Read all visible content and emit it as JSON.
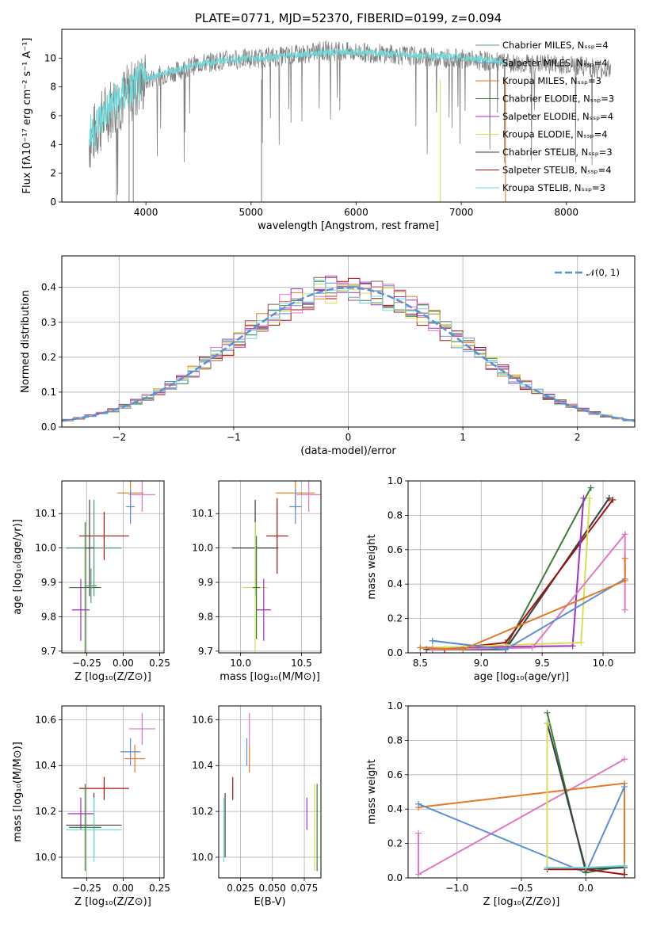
{
  "chart_data": [
    {
      "id": "spectrum",
      "type": "line",
      "title": "PLATE=0771, MJD=52370, FIBERID=0199, z=0.094",
      "xlabel": "wavelength [Angstrom, rest frame]",
      "ylabel": "Flux [fλ10⁻¹⁷ erg cm⁻² s⁻¹ A⁻¹]",
      "xlim": [
        3200,
        8650
      ],
      "ylim": [
        0,
        12
      ],
      "xticks": [
        4000,
        5000,
        6000,
        7000,
        8000
      ],
      "yticks": [
        0,
        2,
        4,
        6,
        8,
        10
      ],
      "legend_position": "upper-right",
      "legend": [
        {
          "label": "Chabrier MILES, Nₛₛₚ=4",
          "color": "#5a9a7a"
        },
        {
          "label": "Salpeter MILES, Nₛₛₚ=4",
          "color": "#7a9acc"
        },
        {
          "label": "Kroupa MILES, Nₛₛₚ=3",
          "color": "#e07b27"
        },
        {
          "label": "Chabrier ELODIE, Nₛₛₚ=3",
          "color": "#3a7a3a"
        },
        {
          "label": "Salpeter ELODIE, Nₛₛₚ=4",
          "color": "#a030c0"
        },
        {
          "label": "Kroupa ELODIE, Nₛₛₚ=4",
          "color": "#d8e050"
        },
        {
          "label": "Chabrier STELIB, Nₛₛₚ=3",
          "color": "#404040"
        },
        {
          "label": "Salpeter STELIB, Nₛₛₚ=4",
          "color": "#a01010"
        },
        {
          "label": "Kroupa STELIB, Nₛₛₚ=3",
          "color": "#70d8d8"
        }
      ],
      "series": [
        {
          "name": "observed",
          "color": "#808080",
          "x_start": 3460,
          "x_end": 8420,
          "points": [
            [
              3460,
              4.1
            ],
            [
              3550,
              5.3
            ],
            [
              3650,
              6.5
            ],
            [
              3750,
              7.0
            ],
            [
              3850,
              7.6
            ],
            [
              3950,
              8.2
            ],
            [
              4050,
              8.6
            ],
            [
              4150,
              8.8
            ],
            [
              4300,
              9.1
            ],
            [
              4500,
              9.6
            ],
            [
              4800,
              9.9
            ],
            [
              5100,
              10.0
            ],
            [
              5400,
              10.2
            ],
            [
              5700,
              10.5
            ],
            [
              6000,
              10.4
            ],
            [
              6300,
              10.3
            ],
            [
              6600,
              10.1
            ],
            [
              6900,
              10.0
            ],
            [
              7200,
              9.8
            ],
            [
              7500,
              9.6
            ],
            [
              7800,
              9.6
            ],
            [
              8100,
              9.5
            ],
            [
              8420,
              9.2
            ]
          ]
        },
        {
          "name": "model",
          "color": "#70d8d8",
          "x_start": 3460,
          "x_end": 7420,
          "points": [
            [
              3460,
              4.6
            ],
            [
              3550,
              5.6
            ],
            [
              3650,
              6.6
            ],
            [
              3750,
              7.2
            ],
            [
              3850,
              7.7
            ],
            [
              3950,
              8.3
            ],
            [
              4050,
              8.7
            ],
            [
              4150,
              8.9
            ],
            [
              4300,
              9.2
            ],
            [
              4500,
              9.6
            ],
            [
              4800,
              9.9
            ],
            [
              5100,
              10.0
            ],
            [
              5400,
              10.2
            ],
            [
              5700,
              10.4
            ],
            [
              6000,
              10.4
            ],
            [
              6300,
              10.3
            ],
            [
              6600,
              10.2
            ],
            [
              6900,
              10.1
            ],
            [
              7200,
              9.9
            ],
            [
              7420,
              9.7
            ]
          ]
        }
      ]
    },
    {
      "id": "residuals",
      "type": "line",
      "title": "",
      "xlabel": "(data-model)/error",
      "ylabel": "Normed distribution",
      "xlim": [
        -2.5,
        2.5
      ],
      "ylim": [
        0,
        0.49
      ],
      "xticks": [
        -2,
        -1,
        0,
        1,
        2
      ],
      "yticks": [
        0.0,
        0.1,
        0.2,
        0.3,
        0.4
      ],
      "grid": true,
      "legend_position": "upper-right",
      "legend": [
        {
          "label": "𝒩(0, 1)",
          "color": "#5b8fd6"
        }
      ],
      "histogram_colors": [
        "#5b8fd6",
        "#e07b27",
        "#3a7a3a",
        "#a01010",
        "#a030c0",
        "#d8e050",
        "#8c564b",
        "#e377c2",
        "#70d8d8"
      ]
    },
    {
      "id": "age-vs-Z",
      "type": "scatter",
      "xlabel": "Z [log₁₀(Z/Z⊙)]",
      "ylabel": "age  [log₁₀(age/yr)]",
      "xlim": [
        -0.42,
        0.28
      ],
      "ylim": [
        9.695,
        10.195
      ],
      "xticks": [
        -0.25,
        0.0,
        0.25
      ],
      "yticks": [
        9.7,
        9.8,
        9.9,
        10.0,
        10.1
      ],
      "grid": true,
      "points": [
        {
          "x": 0.05,
          "y": 10.16,
          "xerr": 0.09,
          "yerr": 0.05,
          "color": "#e07b27"
        },
        {
          "x": 0.13,
          "y": 10.155,
          "xerr": 0.09,
          "yerr": 0.05,
          "color": "#e377c2"
        },
        {
          "x": 0.05,
          "y": 10.12,
          "xerr": 0.03,
          "yerr": 0.05,
          "color": "#5b8fd6"
        },
        {
          "x": -0.13,
          "y": 10.035,
          "xerr": 0.17,
          "yerr": 0.07,
          "color": "#a01010"
        },
        {
          "x": -0.2,
          "y": 10.0,
          "xerr": 0.19,
          "yerr": 0.14,
          "color": "#70d8d8"
        },
        {
          "x": -0.2,
          "y": 10.0,
          "xerr": 0.19,
          "yerr": 0.14,
          "color": "#5a9a7a"
        },
        {
          "x": -0.23,
          "y": 10.0,
          "xerr": 0.03,
          "yerr": 0.14,
          "color": "#404040"
        },
        {
          "x": -0.26,
          "y": 9.885,
          "xerr": 0.11,
          "yerr": 0.19,
          "color": "#d8e050"
        },
        {
          "x": -0.26,
          "y": 9.885,
          "xerr": 0.11,
          "yerr": 0.19,
          "color": "#3a7a3a"
        },
        {
          "x": -0.22,
          "y": 9.89,
          "xerr": 0.04,
          "yerr": 0.05,
          "color": "#5a9a7a"
        },
        {
          "x": -0.29,
          "y": 9.82,
          "xerr": 0.06,
          "yerr": 0.09,
          "color": "#a030c0"
        }
      ]
    },
    {
      "id": "age-vs-mass",
      "type": "scatter",
      "xlabel": "mass [log₁₀(M/M⊙)]",
      "ylabel": "",
      "xlim": [
        9.82,
        10.66
      ],
      "ylim": [
        9.695,
        10.195
      ],
      "xticks": [
        10.0,
        10.5
      ],
      "yticks": [
        9.7,
        9.8,
        9.9,
        10.0,
        10.1
      ],
      "grid": true,
      "points": [
        {
          "x": 10.45,
          "y": 10.16,
          "xerr": 0.16,
          "yerr": 0.05,
          "color": "#e07b27"
        },
        {
          "x": 10.56,
          "y": 10.155,
          "xerr": 0.1,
          "yerr": 0.05,
          "color": "#e377c2"
        },
        {
          "x": 10.45,
          "y": 10.12,
          "xerr": 0.05,
          "yerr": 0.05,
          "color": "#5b8fd6"
        },
        {
          "x": 10.3,
          "y": 10.035,
          "xerr": 0.09,
          "yerr": 0.11,
          "color": "#a01010"
        },
        {
          "x": 10.12,
          "y": 10.0,
          "xerr": 0.19,
          "yerr": 0.14,
          "color": "#70d8d8"
        },
        {
          "x": 10.12,
          "y": 10.0,
          "xerr": 0.19,
          "yerr": 0.14,
          "color": "#404040"
        },
        {
          "x": 10.12,
          "y": 9.885,
          "xerr": 0.1,
          "yerr": 0.19,
          "color": "#d8e050"
        },
        {
          "x": 10.13,
          "y": 9.885,
          "xerr": 0.03,
          "yerr": 0.15,
          "color": "#3a7a3a"
        },
        {
          "x": 10.19,
          "y": 9.82,
          "xerr": 0.06,
          "yerr": 0.09,
          "color": "#a030c0"
        }
      ]
    },
    {
      "id": "weight-vs-age",
      "type": "line",
      "xlabel": "age  [log₁₀(age/yr)]",
      "ylabel": "mass weight",
      "xlim": [
        8.4,
        10.26
      ],
      "ylim": [
        0,
        1
      ],
      "xticks": [
        8.5,
        9.0,
        9.5,
        10.0
      ],
      "yticks": [
        0.0,
        0.2,
        0.4,
        0.6,
        0.8,
        1.0
      ],
      "grid": true,
      "series": [
        {
          "color": "#3a7a3a",
          "points": [
            [
              8.5,
              0.03
            ],
            [
              9.2,
              0.03
            ],
            [
              9.9,
              0.96
            ]
          ]
        },
        {
          "color": "#5a9a7a",
          "points": [
            [
              8.6,
              0.07
            ],
            [
              9.2,
              0.02
            ],
            [
              10.05,
              0.9
            ]
          ]
        },
        {
          "color": "#404040",
          "points": [
            [
              8.55,
              0.02
            ],
            [
              9.2,
              0.02
            ],
            [
              10.05,
              0.9
            ]
          ]
        },
        {
          "color": "#a01010",
          "points": [
            [
              8.6,
              0.02
            ],
            [
              8.7,
              0.02
            ],
            [
              9.2,
              0.06
            ],
            [
              10.08,
              0.89
            ]
          ]
        },
        {
          "color": "#a030c0",
          "points": [
            [
              8.6,
              0.03
            ],
            [
              9.75,
              0.04
            ],
            [
              9.84,
              0.9
            ]
          ]
        },
        {
          "color": "#d8e050",
          "points": [
            [
              8.6,
              0.03
            ],
            [
              9.82,
              0.06
            ],
            [
              9.89,
              0.9
            ]
          ]
        },
        {
          "color": "#e377c2",
          "points": [
            [
              8.6,
              0.02
            ],
            [
              9.42,
              0.03
            ],
            [
              10.18,
              0.69
            ],
            [
              10.18,
              0.25
            ]
          ]
        },
        {
          "color": "#5b8fd6",
          "points": [
            [
              8.6,
              0.07
            ],
            [
              9.2,
              0.02
            ],
            [
              10.18,
              0.43
            ]
          ]
        },
        {
          "color": "#e07b27",
          "points": [
            [
              8.5,
              0.03
            ],
            [
              8.85,
              0.02
            ],
            [
              10.18,
              0.42
            ],
            [
              10.18,
              0.55
            ]
          ]
        }
      ]
    },
    {
      "id": "mass-vs-Z",
      "type": "scatter",
      "xlabel": "Z [log₁₀(Z/Z⊙)]",
      "ylabel": "mass [log₁₀(M/M⊙)]",
      "xlim": [
        -0.42,
        0.28
      ],
      "ylim": [
        9.91,
        10.66
      ],
      "xticks": [
        -0.25,
        0.0,
        0.25
      ],
      "yticks": [
        10.0,
        10.2,
        10.4,
        10.6
      ],
      "grid": true,
      "points": [
        {
          "x": 0.13,
          "y": 10.56,
          "xerr": 0.09,
          "yerr": 0.07,
          "color": "#e377c2"
        },
        {
          "x": 0.05,
          "y": 10.46,
          "xerr": 0.07,
          "yerr": 0.06,
          "color": "#5b8fd6"
        },
        {
          "x": 0.08,
          "y": 10.43,
          "xerr": 0.07,
          "yerr": 0.06,
          "color": "#e07b27"
        },
        {
          "x": -0.13,
          "y": 10.3,
          "xerr": 0.17,
          "yerr": 0.05,
          "color": "#a01010"
        },
        {
          "x": -0.29,
          "y": 10.19,
          "xerr": 0.09,
          "yerr": 0.07,
          "color": "#a030c0"
        },
        {
          "x": -0.2,
          "y": 10.14,
          "xerr": 0.19,
          "yerr": 0.14,
          "color": "#404040"
        },
        {
          "x": -0.2,
          "y": 10.12,
          "xerr": 0.19,
          "yerr": 0.14,
          "color": "#70d8d8"
        },
        {
          "x": -0.26,
          "y": 10.13,
          "xerr": 0.11,
          "yerr": 0.19,
          "color": "#d8e050"
        },
        {
          "x": -0.26,
          "y": 10.13,
          "xerr": 0.11,
          "yerr": 0.19,
          "color": "#3a7a3a"
        }
      ]
    },
    {
      "id": "mass-vs-EBV",
      "type": "scatter",
      "xlabel": "E(B-V)",
      "ylabel": "",
      "xlim": [
        0.008,
        0.088
      ],
      "ylim": [
        9.91,
        10.66
      ],
      "xticks": [
        0.025,
        0.05,
        0.075
      ],
      "xticklabels": [
        "0.025",
        "0.050",
        "0.075"
      ],
      "yticks": [
        10.0,
        10.2,
        10.4,
        10.6
      ],
      "grid": true,
      "points": [
        {
          "x": 0.032,
          "y": 10.56,
          "yerr": 0.07,
          "color": "#e377c2"
        },
        {
          "x": 0.03,
          "y": 10.46,
          "yerr": 0.06,
          "color": "#5b8fd6"
        },
        {
          "x": 0.032,
          "y": 10.43,
          "yerr": 0.06,
          "color": "#e07b27"
        },
        {
          "x": 0.019,
          "y": 10.3,
          "yerr": 0.05,
          "color": "#a01010"
        },
        {
          "x": 0.013,
          "y": 10.14,
          "yerr": 0.14,
          "color": "#404040"
        },
        {
          "x": 0.012,
          "y": 10.12,
          "yerr": 0.14,
          "color": "#70d8d8"
        },
        {
          "x": 0.077,
          "y": 10.19,
          "yerr": 0.07,
          "color": "#a030c0"
        },
        {
          "x": 0.083,
          "y": 10.13,
          "yerr": 0.19,
          "color": "#d8e050"
        },
        {
          "x": 0.085,
          "y": 10.13,
          "yerr": 0.19,
          "color": "#3a7a3a"
        }
      ]
    },
    {
      "id": "weight-vs-Z",
      "type": "line",
      "xlabel": "Z [log₁₀(Z/Z⊙)]",
      "ylabel": "mass weight",
      "xlim": [
        -1.38,
        0.38
      ],
      "ylim": [
        0,
        1
      ],
      "xticks": [
        -1.0,
        -0.5,
        0.0
      ],
      "yticks": [
        0.0,
        0.2,
        0.4,
        0.6,
        0.8,
        1.0
      ],
      "grid": true,
      "series": [
        {
          "color": "#e377c2",
          "points": [
            [
              -1.3,
              0.26
            ],
            [
              -1.3,
              0.02
            ],
            [
              0.3,
              0.69
            ]
          ]
        },
        {
          "color": "#e07b27",
          "points": [
            [
              -1.3,
              0.41
            ],
            [
              0.3,
              0.55
            ],
            [
              0.3,
              0.02
            ]
          ]
        },
        {
          "color": "#5b8fd6",
          "points": [
            [
              -1.3,
              0.43
            ],
            [
              0.0,
              0.03
            ],
            [
              0.3,
              0.53
            ]
          ]
        },
        {
          "color": "#3a7a3a",
          "points": [
            [
              -0.3,
              0.96
            ],
            [
              0.0,
              0.03
            ],
            [
              0.3,
              0.07
            ]
          ]
        },
        {
          "color": "#5a9a7a",
          "points": [
            [
              -0.3,
              0.9
            ],
            [
              0.0,
              0.05
            ],
            [
              0.3,
              0.07
            ]
          ]
        },
        {
          "color": "#404040",
          "points": [
            [
              -0.3,
              0.9
            ],
            [
              0.0,
              0.05
            ],
            [
              0.3,
              0.06
            ]
          ]
        },
        {
          "color": "#d8e050",
          "points": [
            [
              -0.3,
              0.9
            ],
            [
              -0.3,
              0.06
            ],
            [
              0.0,
              0.06
            ]
          ]
        },
        {
          "color": "#a01010",
          "points": [
            [
              -0.3,
              0.05
            ],
            [
              0.0,
              0.05
            ],
            [
              0.3,
              0.02
            ]
          ]
        },
        {
          "color": "#70d8d8",
          "points": [
            [
              -0.3,
              0.06
            ],
            [
              0.0,
              0.06
            ],
            [
              0.3,
              0.07
            ]
          ]
        }
      ]
    }
  ]
}
